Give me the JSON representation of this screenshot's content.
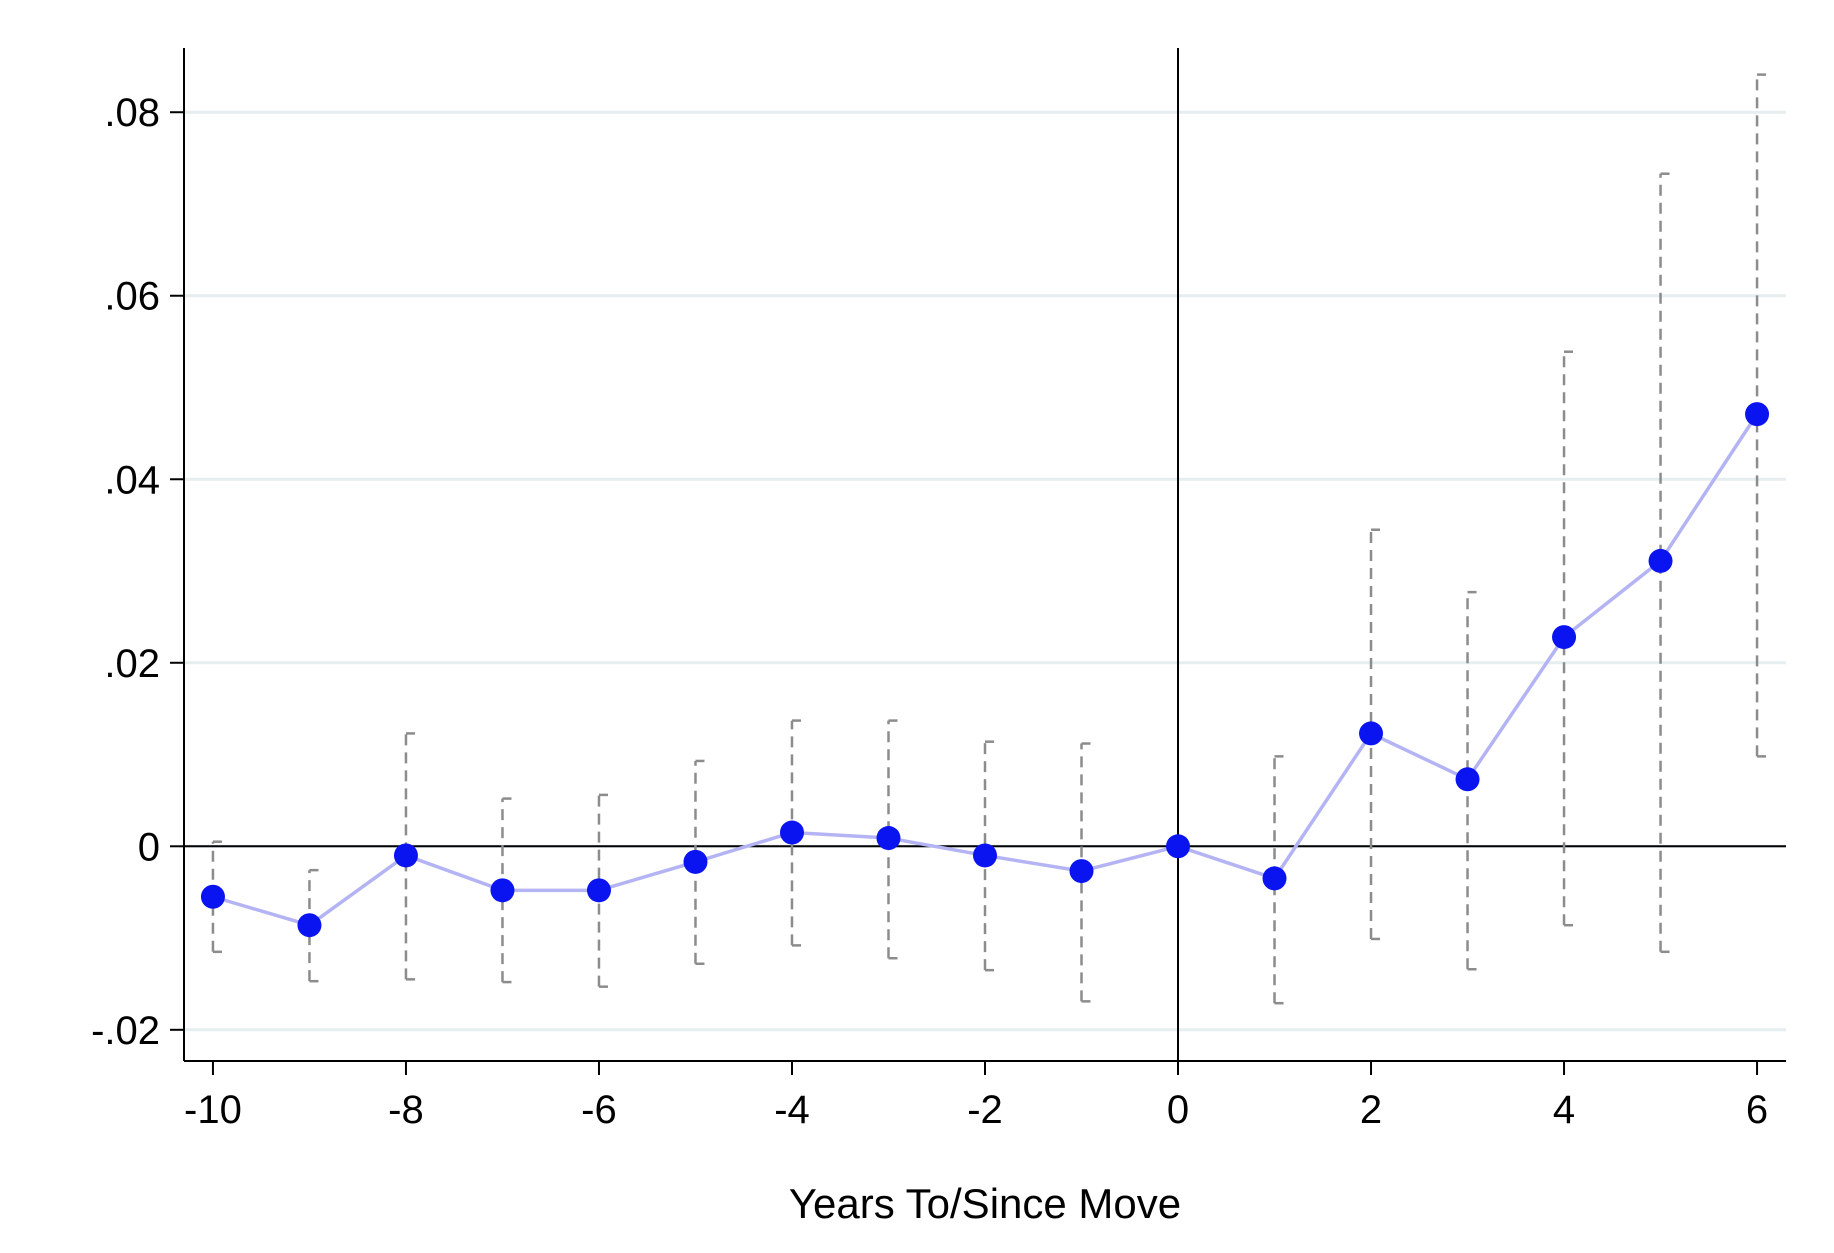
{
  "chart_data": {
    "type": "scatter",
    "title": "",
    "xlabel": "Years To/Since Move",
    "ylabel": "",
    "xlim": [
      -10.3,
      6.3
    ],
    "ylim": [
      -0.0234,
      0.087
    ],
    "xticks": [
      -10,
      -8,
      -6,
      -4,
      -2,
      0,
      2,
      4,
      6
    ],
    "xtick_labels": [
      "-10",
      "-8",
      "-6",
      "-4",
      "-2",
      "0",
      "2",
      "4",
      "6"
    ],
    "yticks": [
      -0.02,
      0,
      0.02,
      0.04,
      0.06,
      0.08
    ],
    "ytick_labels": [
      "-.02",
      "0",
      ".02",
      ".04",
      ".06",
      ".08"
    ],
    "grid": "horizontal",
    "reference_lines": {
      "x": 0,
      "y": 0
    },
    "series": [
      {
        "x": [
          -10,
          -9,
          -8,
          -7,
          -6,
          -5,
          -4,
          -3,
          -2,
          -1,
          0,
          1,
          2,
          3,
          4,
          5,
          6
        ],
        "y": [
          -0.0055,
          -0.0086,
          -0.001,
          -0.0048,
          -0.0048,
          -0.0017,
          0.0015,
          0.0009,
          -0.001,
          -0.0027,
          0.0,
          -0.0035,
          0.0123,
          0.0073,
          0.0228,
          0.0311,
          0.0471
        ],
        "ci_low": [
          -0.0115,
          -0.0147,
          -0.0145,
          -0.0148,
          -0.0153,
          -0.0128,
          -0.0108,
          -0.0122,
          -0.0135,
          -0.0169,
          null,
          -0.0171,
          -0.0101,
          -0.0134,
          -0.0086,
          -0.0115,
          0.0098
        ],
        "ci_high": [
          0.0005,
          -0.0026,
          0.0123,
          0.0052,
          0.0056,
          0.0093,
          0.0137,
          0.0137,
          0.0114,
          0.0112,
          null,
          0.0098,
          0.0345,
          0.0277,
          0.0539,
          0.0733,
          0.0841
        ]
      }
    ],
    "colors": {
      "marker": "#0a14f0",
      "line": "#b4b4f5",
      "ci": "#8c8c8c",
      "grid": "#e6eef0",
      "axis": "#000000"
    }
  }
}
